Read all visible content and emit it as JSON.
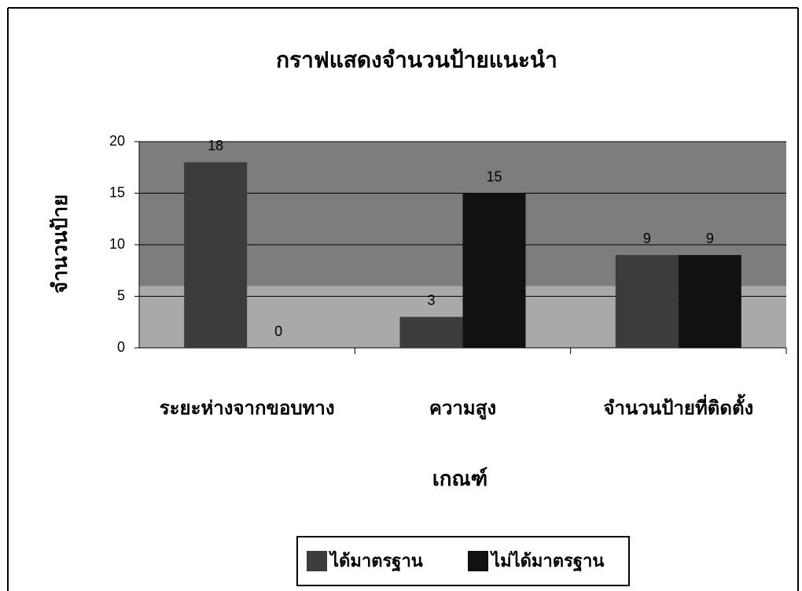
{
  "chart_data": {
    "type": "bar",
    "title": "กราฟแสดงจำนวนป้ายแนะนำ",
    "y_label": "จำนวนป้าย",
    "x_label": "เกณฑ์",
    "categories": [
      "ระยะห่างจากขอบทาง",
      "ความสูง",
      "จำนวนป้ายที่ติดตั้ง"
    ],
    "series": [
      {
        "name": "ได้มาตรฐาน",
        "color": "#3c3c3c",
        "values": [
          18,
          3,
          9
        ]
      },
      {
        "name": "ไม่ได้มาตรฐาน",
        "color": "#111111",
        "values": [
          0,
          15,
          9
        ]
      }
    ],
    "ylim": [
      0,
      20
    ],
    "yticks": [
      0,
      5,
      10,
      15,
      20
    ],
    "grid": true,
    "legend": "bottom"
  }
}
